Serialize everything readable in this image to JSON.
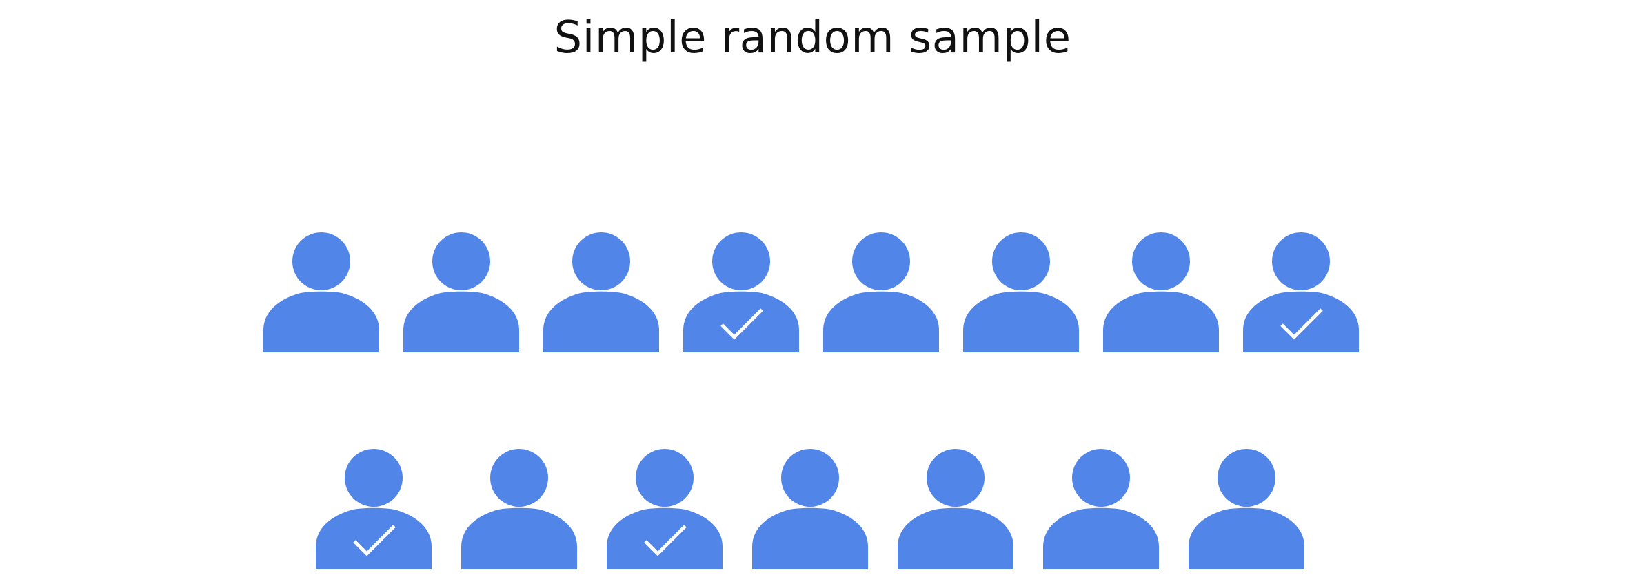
{
  "title": "Simple random sample",
  "colors": {
    "person": "#5186E8",
    "check": "#FFFFFF",
    "title": "#111111"
  },
  "icon": "person-icon",
  "check_icon": "checkmark-icon",
  "rows": [
    {
      "people": [
        false,
        false,
        false,
        true,
        false,
        false,
        false,
        true
      ]
    },
    {
      "people": [
        true,
        false,
        true,
        false,
        false,
        false,
        false
      ]
    }
  ]
}
